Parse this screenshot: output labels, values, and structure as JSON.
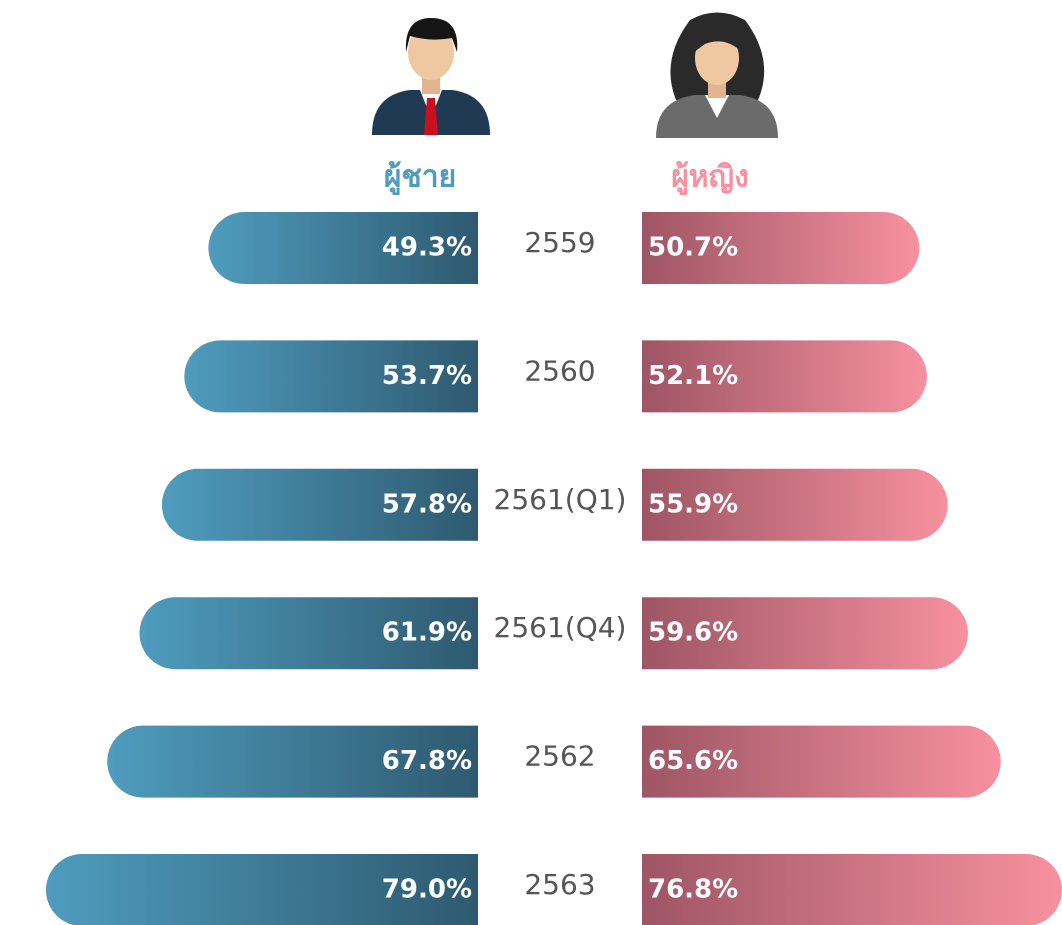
{
  "chart_data": {
    "type": "butterfly",
    "categories": [
      "2559",
      "2560",
      "2561(Q1)",
      "2561(Q4)",
      "2562",
      "2563"
    ],
    "series": [
      {
        "name": "ผู้ชาย",
        "color": "#4f9cbe",
        "values": [
          49.3,
          53.7,
          57.8,
          61.9,
          67.8,
          79.0
        ],
        "value_labels": [
          "49.3%",
          "53.7%",
          "57.8%",
          "61.9%",
          "67.8%",
          "79.0%"
        ]
      },
      {
        "name": "ผู้หญิง",
        "color": "#f7919f",
        "values": [
          50.7,
          52.1,
          55.9,
          59.6,
          65.6,
          76.8
        ],
        "value_labels": [
          "50.7%",
          "52.1%",
          "55.9%",
          "59.6%",
          "65.6%",
          "76.8%"
        ]
      }
    ]
  }
}
